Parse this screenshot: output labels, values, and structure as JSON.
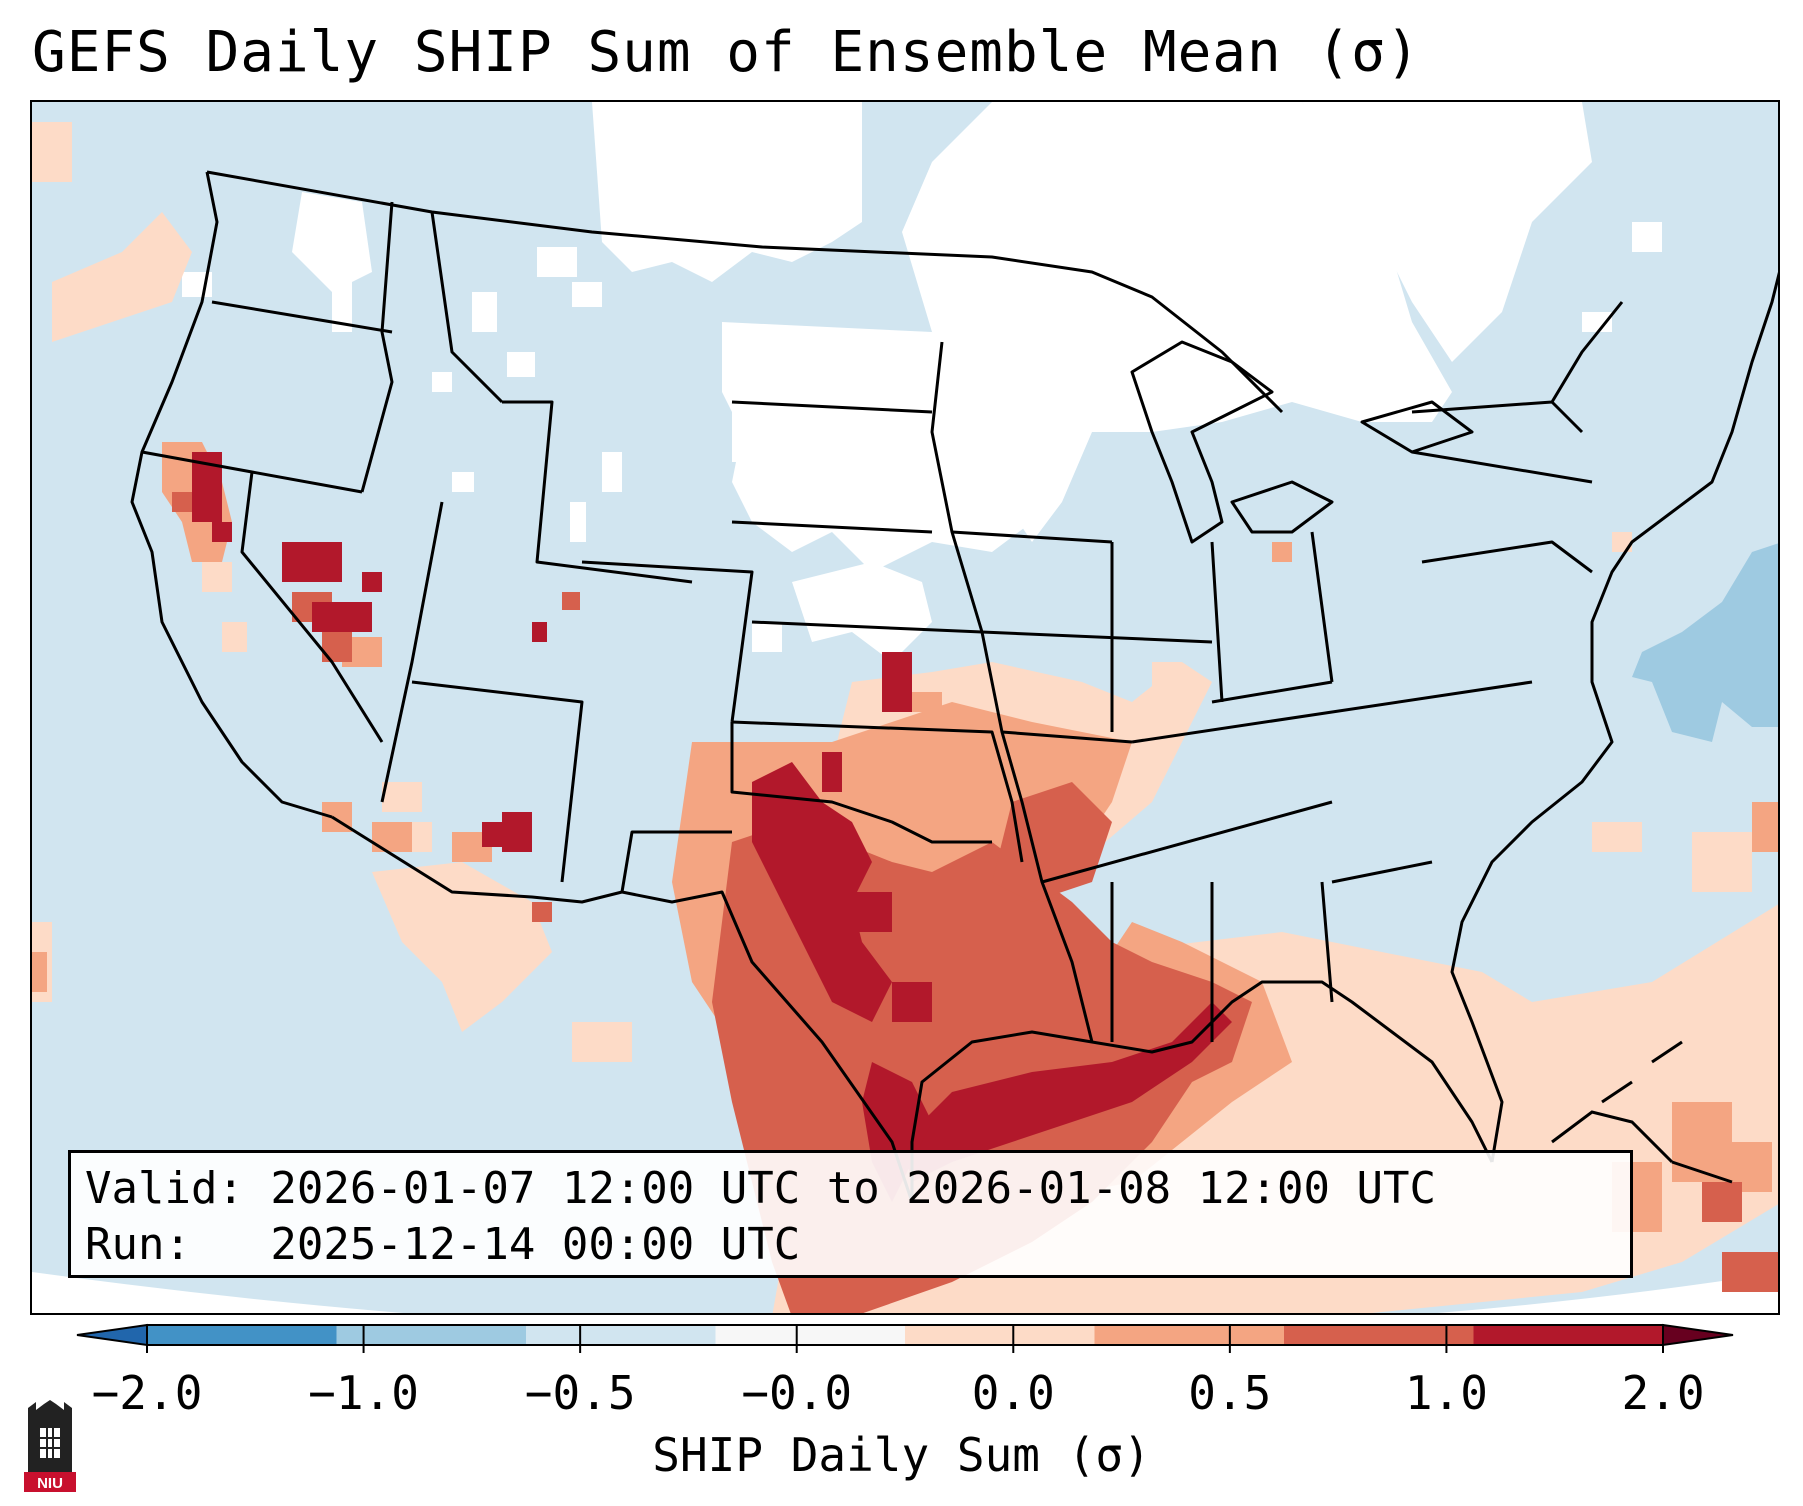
{
  "title": "GEFS Daily SHIP Sum of Ensemble Mean (σ)",
  "info": {
    "valid_line": "Valid: 2026-01-07 12:00 UTC to 2026-01-08 12:00 UTC",
    "run_line": "Run:   2025-12-14 00:00 UTC"
  },
  "colorbar": {
    "label": "SHIP Daily Sum (σ)",
    "ticks": [
      "−2.0",
      "−1.0",
      "−0.5",
      "−0.0",
      "0.0",
      "0.5",
      "1.0",
      "2.0"
    ],
    "bin_colors": [
      "#4292c6",
      "#9ecae1",
      "#d1e5f0",
      "#f7f7f7",
      "#fddbc7",
      "#f4a582",
      "#d6604d",
      "#b2182b"
    ],
    "under_color": "#2166ac",
    "over_color": "#67001f"
  },
  "map_colors": {
    "neutral": "#ffffff",
    "light_blue": "#d1e5f0",
    "mid_blue": "#9ecae1",
    "light_red": "#fddbc7",
    "mid_red": "#f4a582",
    "red": "#d6604d",
    "dark_red": "#b2182b"
  },
  "logo": {
    "text": "NIU",
    "color": "#c8102e"
  }
}
